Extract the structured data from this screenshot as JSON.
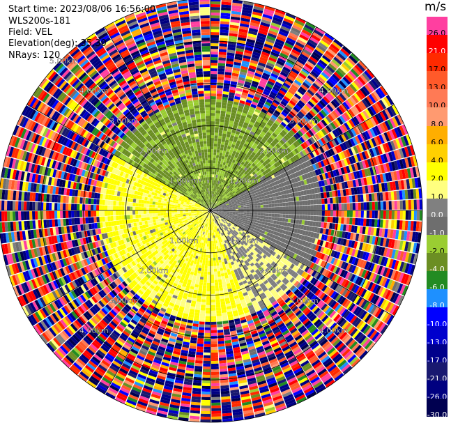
{
  "info": {
    "start_time": "Start time: 2023/08/06 16:56:00",
    "station": "WLS200s-181",
    "field": "Field: VEL",
    "elevation": "Elevation(deg): 35.30",
    "nrays": "NRays: 120"
  },
  "colorbar": {
    "unit": "m/s",
    "levels": [
      {
        "label": "26.0",
        "color": "#ff3fa0",
        "text": "#000000"
      },
      {
        "label": "21.0",
        "color": "#ff0000",
        "text": "#ffffff"
      },
      {
        "label": "17.0",
        "color": "#ff2a00",
        "text": "#000000"
      },
      {
        "label": "13.0",
        "color": "#ff5a2a",
        "text": "#000000"
      },
      {
        "label": "10.0",
        "color": "#ff7a55",
        "text": "#000000"
      },
      {
        "label": "8.0",
        "color": "#ff9a70",
        "text": "#000000"
      },
      {
        "label": "6.0",
        "color": "#ffae00",
        "text": "#000000"
      },
      {
        "label": "4.0",
        "color": "#ffd000",
        "text": "#000000"
      },
      {
        "label": "2.0",
        "color": "#ffff00",
        "text": "#000000"
      },
      {
        "label": "1.0",
        "color": "#ffff80",
        "text": "#000000"
      },
      {
        "label": "0.0",
        "color": "#808080",
        "text": "#ffffff"
      },
      {
        "label": "-1.0",
        "color": "#6e6e6e",
        "text": "#ffffff"
      },
      {
        "label": "-2.0",
        "color": "#9acd32",
        "text": "#000000"
      },
      {
        "label": "-4.0",
        "color": "#6b8e23",
        "text": "#ffffff"
      },
      {
        "label": "-6.0",
        "color": "#228b22",
        "text": "#ffffff"
      },
      {
        "label": "-8.0",
        "color": "#1e90ff",
        "text": "#ffffff"
      },
      {
        "label": "-10.0",
        "color": "#0000ff",
        "text": "#ffffff"
      },
      {
        "label": "-13.0",
        "color": "#0000cd",
        "text": "#ffffff"
      },
      {
        "label": "-17.0",
        "color": "#00008b",
        "text": "#ffffff"
      },
      {
        "label": "-21.0",
        "color": "#191970",
        "text": "#ffffff"
      },
      {
        "label": "-26.0",
        "color": "#000080",
        "text": "#ffffff"
      },
      {
        "label": "-30.0",
        "color": "#000050",
        "text": "#ffffff"
      }
    ]
  },
  "chart_data": {
    "type": "heatmap",
    "projection": "polar-ppi",
    "field": "VEL",
    "units": "m/s",
    "nrays": 120,
    "elevation_deg": 35.3,
    "max_range_km": 5.0,
    "range_ring_labels": [
      "1.00km",
      "2.00km",
      "3.00km",
      "4.00km",
      "5.00km"
    ],
    "coherent_region": {
      "max_range_km": 2.6,
      "sectors": [
        {
          "azimuth_from": 300,
          "azimuth_to": 60,
          "value_range": [
            -4.0,
            -1.0
          ],
          "description": "north: green/olive (approaching)"
        },
        {
          "azimuth_from": 60,
          "azimuth_to": 120,
          "value_range": [
            -1.0,
            0.0
          ],
          "description": "east: grey"
        },
        {
          "azimuth_from": 120,
          "azimuth_to": 160,
          "value_range": [
            0.0,
            2.0
          ],
          "description": "south-east: grey/yellow"
        },
        {
          "azimuth_from": 160,
          "azimuth_to": 300,
          "value_range": [
            1.0,
            4.0
          ],
          "description": "south-west: yellow (receding)"
        }
      ]
    },
    "noise_region": {
      "from_km": 2.6,
      "to_km": 5.0,
      "description": "random noise across the full color scale"
    }
  }
}
